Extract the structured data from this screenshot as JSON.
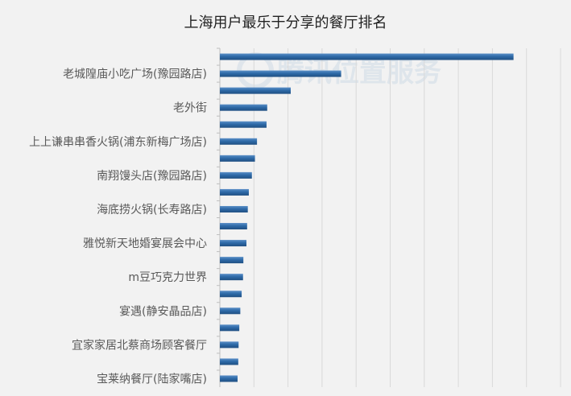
{
  "chart_data": {
    "type": "bar",
    "orientation": "horizontal",
    "title": "上海用户最乐于分享的餐厅排名",
    "xlabel": "",
    "ylabel": "",
    "xlim": [
      0,
      1
    ],
    "grid": "vertical",
    "legend": "none",
    "bar_color": "#2e6aa8",
    "watermark": "腾讯位置服务",
    "categories": [
      "",
      "老城隍庙小吃广场(豫园路店)",
      "",
      "老外街",
      "",
      "上上谦串串香火锅(浦东新梅广场店)",
      "",
      "南翔馒头店(豫园路店)",
      "",
      "海底捞火锅(长寿路店)",
      "",
      "雅悦新天地婚宴展会中心",
      "",
      "m豆巧克力世界",
      "",
      "宴遇(静安晶品店)",
      "",
      "宜家家居北蔡商场顾客餐厅",
      "",
      "宝莱纳餐厅(陆家嘴店)"
    ],
    "values": [
      0.862,
      0.356,
      0.208,
      0.139,
      0.137,
      0.109,
      0.103,
      0.094,
      0.085,
      0.082,
      0.08,
      0.078,
      0.069,
      0.068,
      0.064,
      0.06,
      0.057,
      0.055,
      0.054,
      0.052
    ]
  }
}
